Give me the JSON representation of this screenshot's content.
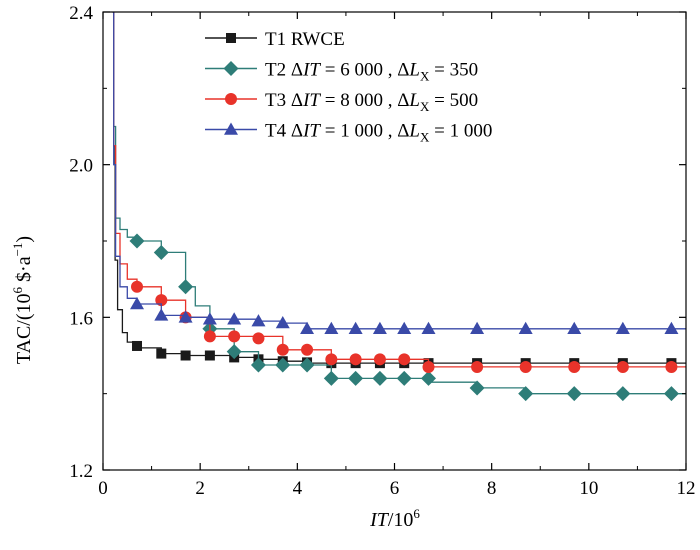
{
  "chart_data": {
    "type": "line",
    "title": "",
    "xlabel": {
      "italic": "IT",
      "rest": "/10",
      "sup": "6"
    },
    "ylabel": {
      "base": "TAC/(10",
      "sup1": "6",
      "mid": " $·a",
      "sup2": "−1",
      "end": ")"
    },
    "xlim": [
      0,
      12
    ],
    "ylim": [
      1.2,
      2.4
    ],
    "xticks": [
      0,
      2,
      4,
      6,
      8,
      10,
      12
    ],
    "yticks": [
      1.2,
      1.6,
      2.0,
      2.4
    ],
    "xtick_labels": [
      "0",
      "2",
      "4",
      "6",
      "8",
      "10",
      "12"
    ],
    "ytick_labels": [
      "1.2",
      "1.6",
      "2.0",
      "2.4"
    ],
    "grid": false,
    "legend_position": "top-right",
    "series": [
      {
        "name": "T1  RWCE",
        "legend_parts": [
          "T1  RWCE"
        ],
        "color": "#1a1a1a",
        "marker": "square",
        "steps": [
          [
            0.2,
            2.4
          ],
          [
            0.22,
            2.05
          ],
          [
            0.25,
            1.75
          ],
          [
            0.3,
            1.62
          ],
          [
            0.4,
            1.56
          ],
          [
            0.5,
            1.535
          ],
          [
            0.7,
            1.52
          ],
          [
            1.2,
            1.505
          ],
          [
            1.7,
            1.5
          ],
          [
            2.2,
            1.5
          ],
          [
            2.7,
            1.495
          ],
          [
            3.2,
            1.49
          ],
          [
            3.7,
            1.485
          ],
          [
            4.2,
            1.48
          ],
          [
            4.7,
            1.48
          ],
          [
            12,
            1.48
          ]
        ],
        "markers": [
          [
            0.7,
            1.525
          ],
          [
            1.2,
            1.505
          ],
          [
            1.7,
            1.5
          ],
          [
            2.2,
            1.5
          ],
          [
            2.7,
            1.495
          ],
          [
            3.2,
            1.49
          ],
          [
            3.7,
            1.485
          ],
          [
            4.2,
            1.482
          ],
          [
            4.7,
            1.48
          ],
          [
            5.2,
            1.48
          ],
          [
            5.7,
            1.48
          ],
          [
            6.2,
            1.48
          ],
          [
            6.7,
            1.48
          ],
          [
            7.7,
            1.48
          ],
          [
            8.7,
            1.48
          ],
          [
            9.7,
            1.48
          ],
          [
            10.7,
            1.48
          ],
          [
            11.7,
            1.48
          ]
        ]
      },
      {
        "name": "T2  ΔIT = 6 000 ,  ΔLX = 350",
        "legend_parts": [
          "T2  Δ",
          "IT",
          " = 6 000 ,  Δ",
          "L",
          "X",
          " = 350"
        ],
        "color": "#2e7d78",
        "marker": "diamond",
        "steps": [
          [
            0.2,
            2.4
          ],
          [
            0.22,
            2.1
          ],
          [
            0.26,
            1.86
          ],
          [
            0.35,
            1.83
          ],
          [
            0.5,
            1.81
          ],
          [
            0.7,
            1.8
          ],
          [
            1.2,
            1.77
          ],
          [
            1.7,
            1.68
          ],
          [
            1.9,
            1.63
          ],
          [
            2.2,
            1.57
          ],
          [
            2.7,
            1.51
          ],
          [
            3.2,
            1.475
          ],
          [
            4.7,
            1.44
          ],
          [
            6.7,
            1.43
          ],
          [
            7.7,
            1.415
          ],
          [
            8.7,
            1.4
          ],
          [
            12,
            1.4
          ]
        ],
        "markers": [
          [
            0.7,
            1.8
          ],
          [
            1.2,
            1.77
          ],
          [
            1.7,
            1.68
          ],
          [
            2.2,
            1.57
          ],
          [
            2.7,
            1.51
          ],
          [
            3.2,
            1.475
          ],
          [
            3.7,
            1.475
          ],
          [
            4.2,
            1.475
          ],
          [
            4.7,
            1.44
          ],
          [
            5.2,
            1.44
          ],
          [
            5.7,
            1.44
          ],
          [
            6.2,
            1.44
          ],
          [
            6.7,
            1.44
          ],
          [
            7.7,
            1.415
          ],
          [
            8.7,
            1.4
          ],
          [
            9.7,
            1.4
          ],
          [
            10.7,
            1.4
          ],
          [
            11.7,
            1.4
          ]
        ]
      },
      {
        "name": "T3  ΔIT = 8 000 ,  ΔLX = 500",
        "legend_parts": [
          "T3  Δ",
          "IT",
          " = 8 000 ,  Δ",
          "L",
          "X",
          " = 500"
        ],
        "color": "#e8332a",
        "marker": "circle",
        "steps": [
          [
            0.2,
            2.4
          ],
          [
            0.22,
            2.05
          ],
          [
            0.26,
            1.82
          ],
          [
            0.35,
            1.74
          ],
          [
            0.5,
            1.7
          ],
          [
            0.7,
            1.68
          ],
          [
            1.2,
            1.645
          ],
          [
            1.7,
            1.6
          ],
          [
            2.2,
            1.55
          ],
          [
            3.7,
            1.515
          ],
          [
            4.7,
            1.49
          ],
          [
            6.7,
            1.47
          ],
          [
            12,
            1.47
          ]
        ],
        "markers": [
          [
            0.7,
            1.68
          ],
          [
            1.2,
            1.645
          ],
          [
            1.7,
            1.6
          ],
          [
            2.2,
            1.55
          ],
          [
            2.7,
            1.55
          ],
          [
            3.2,
            1.545
          ],
          [
            3.7,
            1.515
          ],
          [
            4.2,
            1.515
          ],
          [
            4.7,
            1.49
          ],
          [
            5.2,
            1.49
          ],
          [
            5.7,
            1.49
          ],
          [
            6.2,
            1.49
          ],
          [
            6.7,
            1.47
          ],
          [
            7.7,
            1.47
          ],
          [
            8.7,
            1.47
          ],
          [
            9.7,
            1.47
          ],
          [
            10.7,
            1.47
          ],
          [
            11.7,
            1.47
          ]
        ]
      },
      {
        "name": "T4  ΔIT = 1 000 ,  ΔLX = 1 000",
        "legend_parts": [
          "T4  Δ",
          "IT",
          " = 1 000 ,  Δ",
          "L",
          "X",
          " = 1 000"
        ],
        "color": "#3a4aa8",
        "marker": "triangle",
        "steps": [
          [
            0.2,
            2.4
          ],
          [
            0.22,
            2.0
          ],
          [
            0.26,
            1.76
          ],
          [
            0.35,
            1.68
          ],
          [
            0.5,
            1.65
          ],
          [
            0.7,
            1.635
          ],
          [
            1.2,
            1.605
          ],
          [
            1.7,
            1.6
          ],
          [
            2.2,
            1.595
          ],
          [
            3.2,
            1.59
          ],
          [
            3.7,
            1.585
          ],
          [
            4.2,
            1.57
          ],
          [
            12,
            1.57
          ]
        ],
        "markers": [
          [
            0.7,
            1.635
          ],
          [
            1.2,
            1.605
          ],
          [
            1.7,
            1.6
          ],
          [
            2.2,
            1.595
          ],
          [
            2.7,
            1.595
          ],
          [
            3.2,
            1.59
          ],
          [
            3.7,
            1.585
          ],
          [
            4.2,
            1.57
          ],
          [
            4.7,
            1.57
          ],
          [
            5.2,
            1.57
          ],
          [
            5.7,
            1.57
          ],
          [
            6.2,
            1.57
          ],
          [
            6.7,
            1.57
          ],
          [
            7.7,
            1.57
          ],
          [
            8.7,
            1.57
          ],
          [
            9.7,
            1.57
          ],
          [
            10.7,
            1.57
          ],
          [
            11.7,
            1.57
          ]
        ]
      }
    ]
  }
}
